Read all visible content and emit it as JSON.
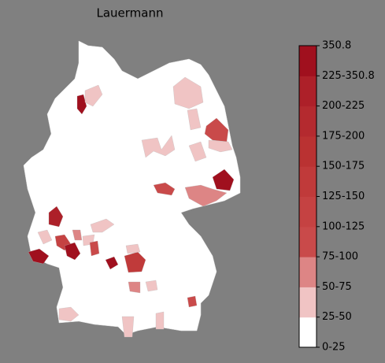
{
  "map": {
    "title": "Lauermann",
    "colorbar": {
      "labels": [
        "0-25",
        "25-50",
        "50-75",
        "75-100",
        "100-125",
        "125-150",
        "150-175",
        "175-200",
        "200-225",
        "225-350.8",
        "350.8"
      ],
      "colors": [
        "#ffffff",
        "#f0c4c4",
        "#dd8585",
        "#c94a4a",
        "#c54242",
        "#c03a3a",
        "#ba3232",
        "#b42a2f",
        "#ad2029",
        "#a0101e"
      ]
    }
  }
}
